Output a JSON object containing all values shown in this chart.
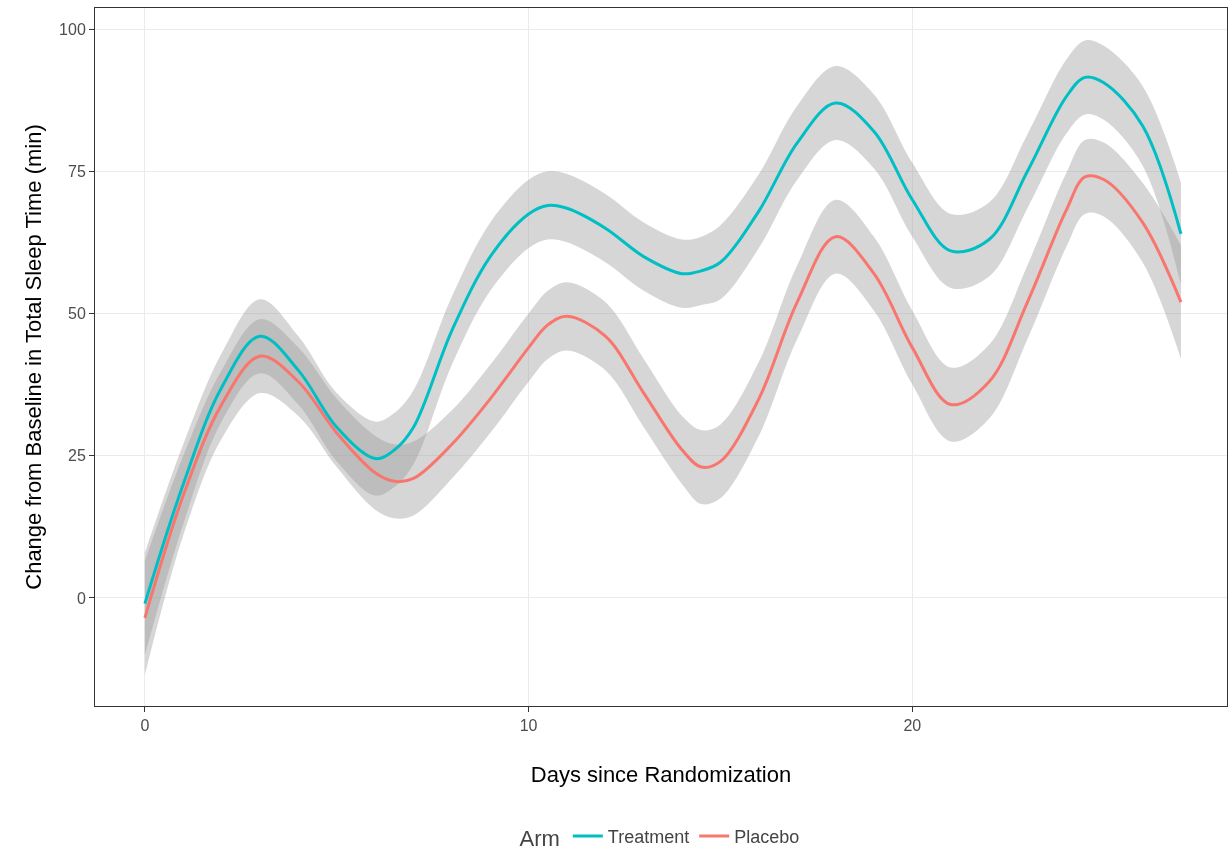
{
  "chart_data": {
    "type": "line",
    "xlabel": "Days since Randomization",
    "ylabel": "Change from Baseline in Total Sleep Time (min)",
    "legend_title": "Arm",
    "x": [
      0,
      1,
      2,
      3,
      4,
      5,
      6,
      6.5,
      7,
      8,
      9,
      10,
      10.5,
      11,
      12,
      13,
      14,
      14.5,
      15,
      16,
      17,
      18,
      19,
      20,
      21,
      22,
      23,
      24,
      24.5,
      25,
      26,
      27
    ],
    "series": [
      {
        "name": "Placebo",
        "color": "#f8766d",
        "values": [
          -3.5,
          18,
          34,
          42.5,
          38,
          29,
          22,
          20.5,
          21,
          27,
          35,
          44,
          48,
          49.5,
          46,
          36,
          26,
          23,
          24,
          35,
          52,
          63.5,
          57,
          44,
          34,
          38,
          52,
          68,
          74,
          73.5,
          66,
          52
        ],
        "lower": [
          -13.5,
          11,
          28,
          36,
          32,
          23,
          15.5,
          14,
          14.5,
          21,
          29,
          38,
          42,
          43.5,
          40,
          30,
          20,
          16.5,
          17.5,
          28.5,
          45.5,
          57,
          50.5,
          37.5,
          27.5,
          31.5,
          45.5,
          61.5,
          67.5,
          67,
          59,
          42
        ],
        "upper": [
          6.5,
          25,
          40,
          49,
          44,
          35,
          28.5,
          27,
          27.5,
          33,
          41,
          50,
          54,
          55.5,
          52,
          42,
          32,
          29.5,
          30.5,
          41.5,
          58.5,
          70,
          63.5,
          50.5,
          40.5,
          44.5,
          58.5,
          74.5,
          80.5,
          80,
          73,
          62
        ]
      },
      {
        "name": "Treatment",
        "color": "#00bfc4",
        "values": [
          -1,
          20,
          37,
          46,
          40,
          30,
          24.5,
          26,
          30,
          47,
          60,
          67.5,
          69,
          68.5,
          65,
          60,
          57,
          57.5,
          59,
          68,
          80,
          87,
          82,
          70,
          61,
          63,
          75,
          88,
          91.5,
          90.5,
          83,
          64
        ],
        "lower": [
          -10,
          13,
          31,
          39.5,
          34,
          24,
          18,
          19.5,
          23.5,
          41,
          54,
          61.5,
          63,
          62.5,
          59,
          54,
          51,
          51.5,
          52.5,
          61.5,
          73.5,
          80.5,
          75.5,
          63.5,
          54.5,
          56.5,
          68.5,
          81.5,
          85,
          84,
          76,
          55
        ],
        "upper": [
          8,
          27,
          43,
          52.5,
          46,
          36,
          31,
          32.5,
          36.5,
          53,
          66,
          73.5,
          75,
          74.5,
          71,
          66,
          63,
          63.5,
          65.5,
          74.5,
          86.5,
          93.5,
          88.5,
          76.5,
          67.5,
          69.5,
          81.5,
          94.5,
          98,
          97,
          90,
          73
        ]
      }
    ],
    "xlim": [
      -1.3,
      28.2
    ],
    "xticks": [
      0,
      10,
      20
    ],
    "ylim": [
      -19,
      103.7
    ],
    "yticks": [
      0,
      25,
      50,
      75,
      100
    ],
    "grid": true,
    "legend": "bottom",
    "marker": "none",
    "line_style": "solid"
  }
}
